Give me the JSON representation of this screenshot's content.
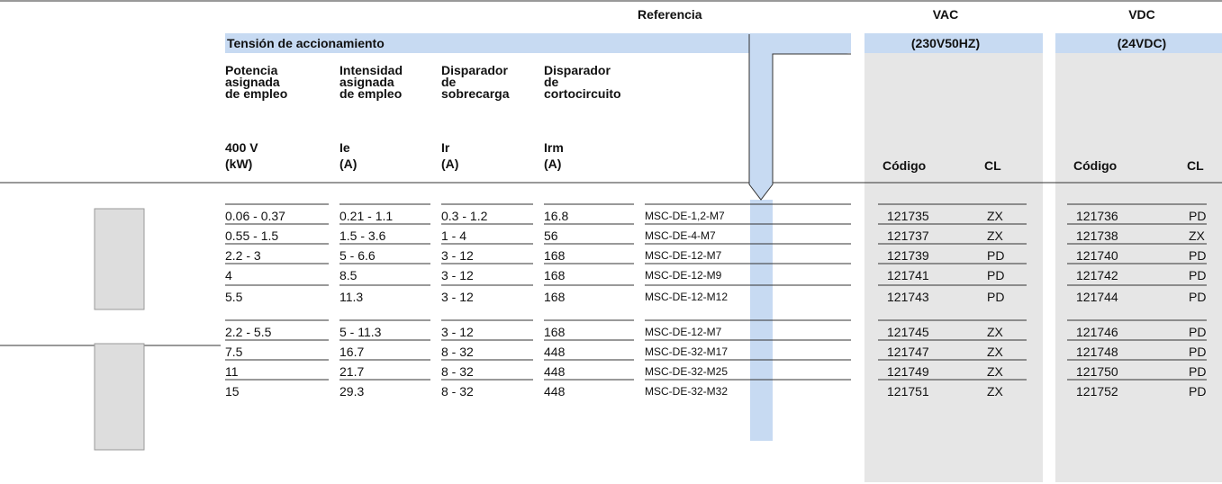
{
  "header": {
    "referencia": "Referencia",
    "vac": "VAC",
    "vac_sub": "(230V50HZ)",
    "vdc": "VDC",
    "vdc_sub": "(24VDC)",
    "section": "Tensión de accionamiento"
  },
  "columns": [
    {
      "title": [
        "Potencia",
        "asignada",
        "de empleo"
      ],
      "unit": [
        "400 V",
        "(kW)"
      ]
    },
    {
      "title": [
        "Intensidad",
        "asignada",
        "de empleo"
      ],
      "unit": [
        "Ie",
        "(A)"
      ]
    },
    {
      "title": [
        "Disparador",
        "de",
        "sobrecarga"
      ],
      "unit": [
        "Ir",
        "(A)"
      ]
    },
    {
      "title": [
        "Disparador",
        "de",
        "cortocircuito"
      ],
      "unit": [
        "Irm",
        "(A)"
      ]
    }
  ],
  "code_headers": [
    "Código",
    "CL",
    "Código",
    "CL"
  ],
  "groups": [
    {
      "rows": [
        [
          "0.06 - 0.37",
          "0.21 - 1.1",
          "0.3 - 1.2",
          "16.8",
          "MSC-DE-1,2-M7",
          "121735",
          "ZX",
          "121736",
          "PD"
        ],
        [
          "0.55 - 1.5",
          "1.5 - 3.6",
          "1 - 4",
          "56",
          "MSC-DE-4-M7",
          "121737",
          "ZX",
          "121738",
          "ZX"
        ],
        [
          "2.2 - 3",
          "5 - 6.6",
          "3 - 12",
          "168",
          "MSC-DE-12-M7",
          "121739",
          "PD",
          "121740",
          "PD"
        ],
        [
          "4",
          "8.5",
          "3 - 12",
          "168",
          "MSC-DE-12-M9",
          "121741",
          "PD",
          "121742",
          "PD"
        ],
        [
          "5.5",
          "11.3",
          "3 - 12",
          "168",
          "MSC-DE-12-M12",
          "121743",
          "PD",
          "121744",
          "PD"
        ]
      ]
    },
    {
      "rows": [
        [
          "2.2 - 5.5",
          "5 - 11.3",
          "3 - 12",
          "168",
          "MSC-DE-12-M7",
          "121745",
          "ZX",
          "121746",
          "PD"
        ],
        [
          "7.5",
          "16.7",
          "8 - 32",
          "448",
          "MSC-DE-32-M17",
          "121747",
          "ZX",
          "121748",
          "PD"
        ],
        [
          "11",
          "21.7",
          "8 - 32",
          "448",
          "MSC-DE-32-M25",
          "121749",
          "ZX",
          "121750",
          "PD"
        ],
        [
          "15",
          "29.3",
          "8 - 32",
          "448",
          "MSC-DE-32-M32",
          "121751",
          "ZX",
          "121752",
          "PD"
        ]
      ]
    }
  ]
}
